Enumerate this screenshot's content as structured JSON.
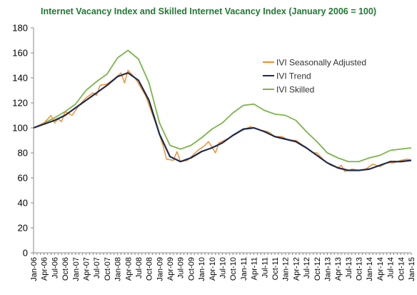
{
  "chart_data": {
    "type": "line",
    "title": "Internet Vacancy Index and Skilled Internet Vacancy Index (January 2006 = 100)",
    "xlabel": "",
    "ylabel": "",
    "ylim": [
      0,
      180
    ],
    "yticks": [
      0,
      20,
      40,
      60,
      80,
      100,
      120,
      140,
      160,
      180
    ],
    "grid": false,
    "legend_position": "top-right",
    "x_start": "2006-01",
    "x_end": "2015-01",
    "x_tick_labels": [
      "Jan-06",
      "Apr-06",
      "Jul-06",
      "Oct-06",
      "Jan-07",
      "Apr-07",
      "Jul-07",
      "Oct-07",
      "Jan-08",
      "Apr-08",
      "Jul-08",
      "Oct-08",
      "Jan-09",
      "Apr-09",
      "Jul-09",
      "Oct-09",
      "Jan-10",
      "Apr-10",
      "Jul-10",
      "Oct-10",
      "Jan-11",
      "Apr-11",
      "Jul-11",
      "Oct-11",
      "Jan-12",
      "Apr-12",
      "Jul-12",
      "Oct-12",
      "Jan-13",
      "Apr-13",
      "Jul-13",
      "Oct-13",
      "Jan-14",
      "Apr-14",
      "Jul-14",
      "Oct-14",
      "Jan-15"
    ],
    "series": [
      {
        "name": "IVI Seasonally Adjusted",
        "color": "#f28c28",
        "points": [
          [
            "2006-01",
            100
          ],
          [
            "2006-04",
            104
          ],
          [
            "2006-06",
            110
          ],
          [
            "2006-07",
            104
          ],
          [
            "2006-08",
            107
          ],
          [
            "2006-09",
            105
          ],
          [
            "2006-10",
            113
          ],
          [
            "2006-12",
            110
          ],
          [
            "2007-02",
            118
          ],
          [
            "2007-04",
            124
          ],
          [
            "2007-06",
            128
          ],
          [
            "2007-07",
            126
          ],
          [
            "2007-08",
            134
          ],
          [
            "2007-10",
            135
          ],
          [
            "2007-12",
            139
          ],
          [
            "2008-02",
            144
          ],
          [
            "2008-03",
            136
          ],
          [
            "2008-04",
            146
          ],
          [
            "2008-06",
            140
          ],
          [
            "2008-09",
            126
          ],
          [
            "2008-12",
            103
          ],
          [
            "2009-02",
            86
          ],
          [
            "2009-03",
            75
          ],
          [
            "2009-05",
            74
          ],
          [
            "2009-06",
            81
          ],
          [
            "2009-07",
            73
          ],
          [
            "2009-09",
            74
          ],
          [
            "2009-12",
            82
          ],
          [
            "2010-02",
            86
          ],
          [
            "2010-03",
            89
          ],
          [
            "2010-05",
            80
          ],
          [
            "2010-06",
            88
          ],
          [
            "2010-09",
            92
          ],
          [
            "2010-12",
            97
          ],
          [
            "2011-03",
            101
          ],
          [
            "2011-06",
            98
          ],
          [
            "2011-08",
            97
          ],
          [
            "2011-10",
            93
          ],
          [
            "2011-12",
            93
          ],
          [
            "2012-02",
            90
          ],
          [
            "2012-04",
            90
          ],
          [
            "2012-06",
            86
          ],
          [
            "2012-09",
            80
          ],
          [
            "2012-10",
            80
          ],
          [
            "2012-12",
            74
          ],
          [
            "2013-02",
            70
          ],
          [
            "2013-04",
            68
          ],
          [
            "2013-05",
            70
          ],
          [
            "2013-06",
            65
          ],
          [
            "2013-08",
            67
          ],
          [
            "2013-10",
            66
          ],
          [
            "2013-12",
            67
          ],
          [
            "2014-02",
            71
          ],
          [
            "2014-04",
            69
          ],
          [
            "2014-06",
            72
          ],
          [
            "2014-08",
            72
          ],
          [
            "2014-10",
            74
          ],
          [
            "2014-12",
            75
          ],
          [
            "2015-01",
            74
          ]
        ]
      },
      {
        "name": "IVI Trend",
        "color": "#1f2a4d",
        "points": [
          [
            "2006-01",
            100
          ],
          [
            "2006-04",
            103
          ],
          [
            "2006-07",
            106
          ],
          [
            "2006-10",
            110
          ],
          [
            "2007-01",
            116
          ],
          [
            "2007-04",
            122
          ],
          [
            "2007-07",
            128
          ],
          [
            "2007-10",
            134
          ],
          [
            "2008-01",
            141
          ],
          [
            "2008-04",
            144
          ],
          [
            "2008-07",
            138
          ],
          [
            "2008-10",
            122
          ],
          [
            "2009-01",
            95
          ],
          [
            "2009-04",
            77
          ],
          [
            "2009-07",
            73
          ],
          [
            "2009-10",
            76
          ],
          [
            "2010-01",
            81
          ],
          [
            "2010-04",
            84
          ],
          [
            "2010-07",
            88
          ],
          [
            "2010-10",
            94
          ],
          [
            "2011-01",
            99
          ],
          [
            "2011-04",
            100
          ],
          [
            "2011-07",
            97
          ],
          [
            "2011-10",
            93
          ],
          [
            "2012-01",
            91
          ],
          [
            "2012-04",
            89
          ],
          [
            "2012-07",
            84
          ],
          [
            "2012-10",
            78
          ],
          [
            "2013-01",
            72
          ],
          [
            "2013-04",
            68
          ],
          [
            "2013-07",
            66
          ],
          [
            "2013-10",
            66
          ],
          [
            "2014-01",
            67
          ],
          [
            "2014-04",
            70
          ],
          [
            "2014-07",
            73
          ],
          [
            "2014-10",
            73
          ],
          [
            "2015-01",
            74
          ]
        ]
      },
      {
        "name": "IVI Skilled",
        "color": "#7ab648",
        "points": [
          [
            "2006-01",
            100
          ],
          [
            "2006-04",
            104
          ],
          [
            "2006-07",
            108
          ],
          [
            "2006-10",
            113
          ],
          [
            "2007-01",
            119
          ],
          [
            "2007-04",
            130
          ],
          [
            "2007-07",
            137
          ],
          [
            "2007-10",
            143
          ],
          [
            "2008-01",
            156
          ],
          [
            "2008-04",
            162
          ],
          [
            "2008-07",
            155
          ],
          [
            "2008-10",
            136
          ],
          [
            "2009-01",
            104
          ],
          [
            "2009-04",
            86
          ],
          [
            "2009-07",
            83
          ],
          [
            "2009-10",
            86
          ],
          [
            "2010-01",
            92
          ],
          [
            "2010-04",
            99
          ],
          [
            "2010-07",
            104
          ],
          [
            "2010-10",
            112
          ],
          [
            "2011-01",
            118
          ],
          [
            "2011-04",
            119
          ],
          [
            "2011-07",
            114
          ],
          [
            "2011-10",
            111
          ],
          [
            "2012-01",
            110
          ],
          [
            "2012-04",
            106
          ],
          [
            "2012-07",
            97
          ],
          [
            "2012-10",
            89
          ],
          [
            "2013-01",
            80
          ],
          [
            "2013-04",
            76
          ],
          [
            "2013-07",
            73
          ],
          [
            "2013-10",
            73
          ],
          [
            "2014-01",
            76
          ],
          [
            "2014-04",
            78
          ],
          [
            "2014-07",
            82
          ],
          [
            "2014-10",
            83
          ],
          [
            "2015-01",
            84
          ]
        ]
      }
    ]
  }
}
